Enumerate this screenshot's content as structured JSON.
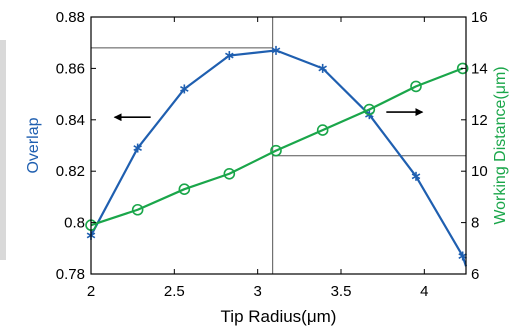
{
  "chart_data": {
    "type": "line",
    "xlabel": "Tip Radius(μm)",
    "xlim": [
      2,
      4.25
    ],
    "xticks": [
      2,
      2.5,
      3,
      3.5,
      4
    ],
    "xtick_labels": [
      "2",
      "2.5",
      "3",
      "3.5",
      "4"
    ],
    "y_left": {
      "label": "Overlap",
      "range": [
        0.78,
        0.88
      ],
      "ticks": [
        0.78,
        0.8,
        0.82,
        0.84,
        0.86,
        0.88
      ],
      "tick_labels": [
        "0.78",
        "0.8",
        "0.82",
        "0.84",
        "0.86",
        "0.88"
      ],
      "color": "#1f5fb0"
    },
    "y_right": {
      "label": "Working Distance(μm)",
      "range": [
        6,
        16
      ],
      "ticks": [
        6,
        8,
        10,
        12,
        14,
        16
      ],
      "tick_labels": [
        "6",
        "8",
        "10",
        "12",
        "14",
        "16"
      ],
      "color": "#1aa64a"
    },
    "series": [
      {
        "axis": "left",
        "marker": "asterisk",
        "color": "#1f5fb0",
        "x": [
          2.0,
          2.28,
          2.56,
          2.83,
          3.11,
          3.39,
          3.67,
          3.95,
          4.23,
          4.25
        ],
        "y": [
          0.795,
          0.829,
          0.852,
          0.865,
          0.867,
          0.86,
          0.842,
          0.818,
          0.787,
          0.783
        ]
      },
      {
        "axis": "right",
        "marker": "circle",
        "color": "#1aa64a",
        "x": [
          2.0,
          2.28,
          2.56,
          2.83,
          3.11,
          3.39,
          3.67,
          3.95,
          4.23
        ],
        "y": [
          7.9,
          8.5,
          9.3,
          9.9,
          10.8,
          11.6,
          12.4,
          13.3,
          14.0
        ]
      }
    ],
    "reference_lines": {
      "vertical_x": 3.09,
      "left_horizontal_y": 0.868,
      "right_horizontal_y": 10.6
    },
    "arrows": [
      {
        "direction": "left",
        "points_to": "left axis",
        "at_x": 2.25,
        "at_y_left": 0.841
      },
      {
        "direction": "right",
        "points_to": "right axis",
        "at_x": 3.88,
        "at_y_left": 0.843
      }
    ],
    "grid": false,
    "legend": "none"
  }
}
